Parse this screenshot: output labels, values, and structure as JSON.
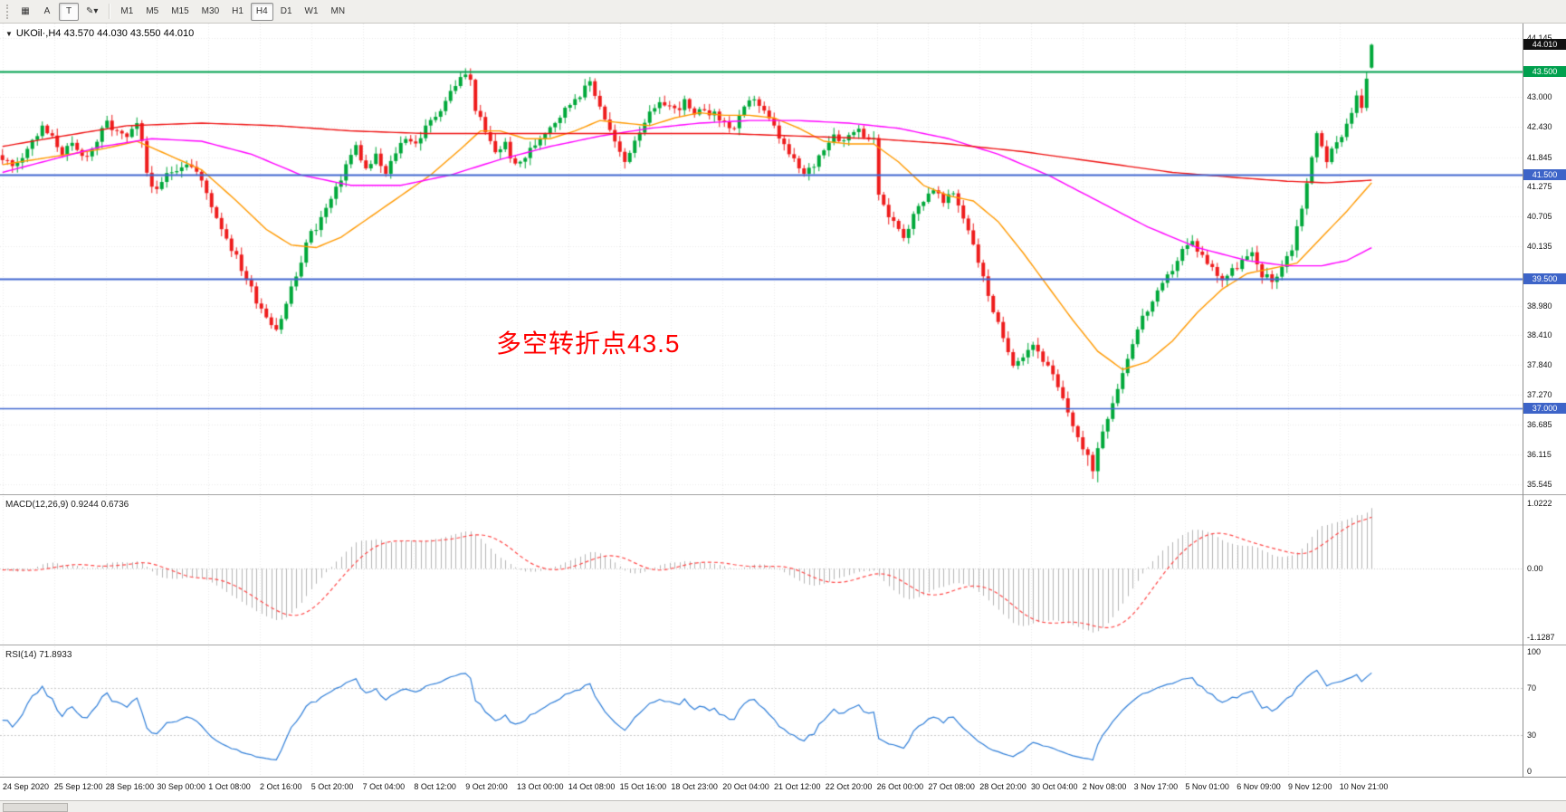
{
  "toolbar": {
    "left_buttons": [
      {
        "name": "chart-grid-icon",
        "label": "▦",
        "pressed": false
      },
      {
        "name": "font-a-button",
        "label": "A",
        "pressed": false
      },
      {
        "name": "text-tool-button",
        "label": "T",
        "pressed": true
      },
      {
        "name": "drawing-tool-dropdown",
        "label": "✎▾",
        "pressed": false
      }
    ],
    "timeframes": [
      "M1",
      "M5",
      "M15",
      "M30",
      "H1",
      "H4",
      "D1",
      "W1",
      "MN"
    ],
    "active_timeframe": "H4"
  },
  "chart": {
    "title": "UKOil·,H4 43.570 44.030 43.550 44.010",
    "annotation": {
      "text": "多空转折点43.5",
      "color": "#ff0000"
    },
    "price_axis_labels": [
      "44.145",
      "43.000",
      "42.430",
      "41.845",
      "41.275",
      "40.705",
      "40.135",
      "38.980",
      "38.410",
      "37.840",
      "37.270",
      "36.685",
      "36.115",
      "35.545"
    ],
    "badges": [
      {
        "text": "44.010",
        "bg": "#111111",
        "price": 44.01
      },
      {
        "text": "43.500",
        "bg": "#00a04e",
        "price": 43.5
      },
      {
        "text": "41.500",
        "bg": "#3d64c8",
        "price": 41.5
      },
      {
        "text": "39.500",
        "bg": "#3d64c8",
        "price": 39.5
      },
      {
        "text": "37.000",
        "bg": "#3d64c8",
        "price": 37.0
      }
    ],
    "hlines": [
      {
        "price": 43.5,
        "color": "#00a04e",
        "width": 2
      },
      {
        "price": 41.5,
        "color": "#4167d0",
        "width": 2
      },
      {
        "price": 39.5,
        "color": "#4167d0",
        "width": 2
      },
      {
        "price": 37.0,
        "color": "#4167d0",
        "width": 1.5
      }
    ]
  },
  "macd": {
    "label": "MACD(12,26,9) 0.9244 0.6736",
    "axis_max": "1.0222",
    "axis_zero": "0.00",
    "axis_min": "-1.1287"
  },
  "rsi": {
    "label": "RSI(14) 71.8933",
    "axis": [
      {
        "v": 100,
        "label": "100"
      },
      {
        "v": 70,
        "label": "70"
      },
      {
        "v": 30,
        "label": "30"
      },
      {
        "v": 0,
        "label": "0"
      }
    ]
  },
  "time_axis": [
    "24 Sep 2020",
    "25 Sep 12:00",
    "28 Sep 16:00",
    "30 Sep 00:00",
    "1 Oct 08:00",
    "2 Oct 16:00",
    "5 Oct 20:00",
    "7 Oct 04:00",
    "8 Oct 12:00",
    "9 Oct 20:00",
    "13 Oct 00:00",
    "14 Oct 08:00",
    "15 Oct 16:00",
    "18 Oct 23:00",
    "20 Oct 04:00",
    "21 Oct 12:00",
    "22 Oct 20:00",
    "26 Oct 00:00",
    "27 Oct 08:00",
    "28 Oct 20:00",
    "30 Oct 04:00",
    "2 Nov 08:00",
    "3 Nov 17:00",
    "5 Nov 01:00",
    "6 Nov 09:00",
    "9 Nov 12:00",
    "10 Nov 21:00"
  ],
  "chart_data": {
    "type": "candlestick",
    "symbol": "UKOil",
    "timeframe": "H4",
    "last_candle": {
      "open": 43.57,
      "high": 44.03,
      "low": 43.55,
      "close": 44.01
    },
    "bars": 276,
    "prehistory_bars": 100,
    "price_min": 35.45,
    "price_max": 44.35,
    "up_color": "#00a83a",
    "down_color": "#ee1c1c",
    "waypoints": [
      [
        -100,
        42.3
      ],
      [
        -88,
        41.7
      ],
      [
        -76,
        42.2
      ],
      [
        -64,
        41.8
      ],
      [
        -52,
        42.3
      ],
      [
        -40,
        41.9
      ],
      [
        -28,
        42.2
      ],
      [
        -16,
        41.7
      ],
      [
        -8,
        42.0
      ],
      [
        -1,
        41.9
      ],
      [
        0,
        41.85
      ],
      [
        2,
        41.65
      ],
      [
        4,
        41.9
      ],
      [
        6,
        42.15
      ],
      [
        8,
        42.4
      ],
      [
        10,
        42.2
      ],
      [
        12,
        41.95
      ],
      [
        14,
        42.05
      ],
      [
        16,
        41.85
      ],
      [
        18,
        42.0
      ],
      [
        21,
        42.5
      ],
      [
        23,
        42.3
      ],
      [
        25,
        42.2
      ],
      [
        27,
        42.45
      ],
      [
        28,
        42.1
      ],
      [
        29,
        41.55
      ],
      [
        31,
        41.15
      ],
      [
        33,
        41.5
      ],
      [
        35,
        41.65
      ],
      [
        37,
        41.75
      ],
      [
        39,
        41.55
      ],
      [
        41,
        41.15
      ],
      [
        43,
        40.7
      ],
      [
        45,
        40.3
      ],
      [
        47,
        39.9
      ],
      [
        49,
        39.5
      ],
      [
        51,
        39.1
      ],
      [
        53,
        38.8
      ],
      [
        55,
        38.55
      ],
      [
        56,
        38.75
      ],
      [
        57,
        39.0
      ],
      [
        58,
        39.35
      ],
      [
        60,
        39.75
      ],
      [
        61,
        40.25
      ],
      [
        63,
        40.5
      ],
      [
        65,
        40.85
      ],
      [
        67,
        41.2
      ],
      [
        69,
        41.7
      ],
      [
        71,
        42.05
      ],
      [
        73,
        41.6
      ],
      [
        75,
        41.85
      ],
      [
        77,
        41.5
      ],
      [
        79,
        41.95
      ],
      [
        81,
        42.25
      ],
      [
        83,
        42.1
      ],
      [
        85,
        42.4
      ],
      [
        87,
        42.65
      ],
      [
        89,
        42.95
      ],
      [
        91,
        43.25
      ],
      [
        93,
        43.45
      ],
      [
        94,
        43.3
      ],
      [
        95,
        42.8
      ],
      [
        97,
        42.3
      ],
      [
        99,
        41.95
      ],
      [
        101,
        42.1
      ],
      [
        103,
        41.65
      ],
      [
        105,
        41.85
      ],
      [
        107,
        42.1
      ],
      [
        109,
        42.35
      ],
      [
        111,
        42.55
      ],
      [
        113,
        42.75
      ],
      [
        115,
        43.0
      ],
      [
        117,
        43.15
      ],
      [
        118,
        43.3
      ],
      [
        120,
        42.85
      ],
      [
        122,
        42.35
      ],
      [
        124,
        41.9
      ],
      [
        125,
        41.75
      ],
      [
        127,
        42.2
      ],
      [
        129,
        42.55
      ],
      [
        131,
        42.75
      ],
      [
        133,
        42.9
      ],
      [
        135,
        42.75
      ],
      [
        137,
        42.9
      ],
      [
        139,
        42.6
      ],
      [
        141,
        42.8
      ],
      [
        143,
        42.65
      ],
      [
        145,
        42.5
      ],
      [
        147,
        42.4
      ],
      [
        149,
        42.75
      ],
      [
        151,
        43.0
      ],
      [
        153,
        42.7
      ],
      [
        155,
        42.4
      ],
      [
        157,
        42.05
      ],
      [
        159,
        41.75
      ],
      [
        161,
        41.5
      ],
      [
        163,
        41.7
      ],
      [
        165,
        42.05
      ],
      [
        167,
        42.3
      ],
      [
        169,
        42.15
      ],
      [
        171,
        42.4
      ],
      [
        173,
        42.3
      ],
      [
        175,
        42.15
      ],
      [
        176,
        41.15
      ],
      [
        177,
        40.85
      ],
      [
        179,
        40.6
      ],
      [
        181,
        40.35
      ],
      [
        183,
        40.7
      ],
      [
        185,
        41.05
      ],
      [
        187,
        41.25
      ],
      [
        189,
        40.95
      ],
      [
        191,
        41.15
      ],
      [
        193,
        40.7
      ],
      [
        195,
        40.2
      ],
      [
        197,
        39.5
      ],
      [
        199,
        38.9
      ],
      [
        201,
        38.3
      ],
      [
        203,
        37.9
      ],
      [
        205,
        38.05
      ],
      [
        207,
        38.25
      ],
      [
        209,
        37.95
      ],
      [
        211,
        37.6
      ],
      [
        213,
        37.15
      ],
      [
        215,
        36.7
      ],
      [
        217,
        36.2
      ],
      [
        219,
        35.85
      ],
      [
        220,
        36.25
      ],
      [
        221,
        36.6
      ],
      [
        223,
        37.15
      ],
      [
        225,
        37.7
      ],
      [
        227,
        38.3
      ],
      [
        229,
        38.75
      ],
      [
        231,
        39.05
      ],
      [
        233,
        39.35
      ],
      [
        235,
        39.7
      ],
      [
        237,
        40.05
      ],
      [
        239,
        40.2
      ],
      [
        241,
        39.95
      ],
      [
        243,
        39.7
      ],
      [
        245,
        39.5
      ],
      [
        247,
        39.65
      ],
      [
        249,
        39.85
      ],
      [
        251,
        39.95
      ],
      [
        253,
        39.6
      ],
      [
        255,
        39.45
      ],
      [
        257,
        39.75
      ],
      [
        259,
        40.1
      ],
      [
        261,
        40.9
      ],
      [
        263,
        41.8
      ],
      [
        264,
        42.3
      ],
      [
        265,
        42.1
      ],
      [
        266,
        41.8
      ],
      [
        268,
        42.1
      ],
      [
        270,
        42.5
      ],
      [
        271,
        42.75
      ],
      [
        272,
        43.0
      ],
      [
        273,
        42.8
      ],
      [
        274,
        43.3
      ],
      [
        275,
        44.01
      ]
    ],
    "ma_lines": [
      {
        "name": "ma-fast",
        "color": "#ff9900",
        "points": [
          [
            0,
            41.7
          ],
          [
            10,
            41.85
          ],
          [
            20,
            42.0
          ],
          [
            27,
            42.15
          ],
          [
            33,
            41.9
          ],
          [
            40,
            41.6
          ],
          [
            47,
            41.0
          ],
          [
            53,
            40.45
          ],
          [
            58,
            40.15
          ],
          [
            63,
            40.1
          ],
          [
            68,
            40.3
          ],
          [
            74,
            40.7
          ],
          [
            80,
            41.1
          ],
          [
            86,
            41.5
          ],
          [
            92,
            42.0
          ],
          [
            96,
            42.35
          ],
          [
            100,
            42.35
          ],
          [
            105,
            42.2
          ],
          [
            110,
            42.2
          ],
          [
            115,
            42.35
          ],
          [
            120,
            42.55
          ],
          [
            125,
            42.5
          ],
          [
            130,
            42.45
          ],
          [
            135,
            42.6
          ],
          [
            140,
            42.7
          ],
          [
            145,
            42.65
          ],
          [
            150,
            42.65
          ],
          [
            155,
            42.6
          ],
          [
            160,
            42.4
          ],
          [
            165,
            42.15
          ],
          [
            170,
            42.1
          ],
          [
            175,
            42.1
          ],
          [
            180,
            41.75
          ],
          [
            185,
            41.3
          ],
          [
            190,
            41.1
          ],
          [
            195,
            41.0
          ],
          [
            200,
            40.6
          ],
          [
            205,
            40.0
          ],
          [
            210,
            39.35
          ],
          [
            215,
            38.7
          ],
          [
            220,
            38.1
          ],
          [
            225,
            37.75
          ],
          [
            230,
            37.9
          ],
          [
            235,
            38.3
          ],
          [
            240,
            38.85
          ],
          [
            245,
            39.3
          ],
          [
            250,
            39.6
          ],
          [
            255,
            39.7
          ],
          [
            260,
            39.8
          ],
          [
            265,
            40.3
          ],
          [
            270,
            40.8
          ],
          [
            275,
            41.35
          ]
        ]
      },
      {
        "name": "ma-mid",
        "color": "#ff00ff",
        "points": [
          [
            0,
            41.55
          ],
          [
            10,
            41.8
          ],
          [
            20,
            42.05
          ],
          [
            30,
            42.2
          ],
          [
            40,
            42.15
          ],
          [
            50,
            41.9
          ],
          [
            60,
            41.5
          ],
          [
            70,
            41.3
          ],
          [
            80,
            41.3
          ],
          [
            90,
            41.5
          ],
          [
            100,
            41.8
          ],
          [
            110,
            42.05
          ],
          [
            120,
            42.25
          ],
          [
            130,
            42.4
          ],
          [
            140,
            42.5
          ],
          [
            150,
            42.55
          ],
          [
            160,
            42.55
          ],
          [
            170,
            42.5
          ],
          [
            180,
            42.4
          ],
          [
            190,
            42.2
          ],
          [
            200,
            41.9
          ],
          [
            210,
            41.5
          ],
          [
            220,
            41.0
          ],
          [
            230,
            40.5
          ],
          [
            240,
            40.1
          ],
          [
            250,
            39.85
          ],
          [
            258,
            39.75
          ],
          [
            265,
            39.75
          ],
          [
            270,
            39.85
          ],
          [
            275,
            40.1
          ]
        ]
      },
      {
        "name": "ma-slow",
        "color": "#ee1111",
        "points": [
          [
            0,
            42.05
          ],
          [
            12,
            42.25
          ],
          [
            25,
            42.45
          ],
          [
            40,
            42.5
          ],
          [
            55,
            42.45
          ],
          [
            70,
            42.35
          ],
          [
            85,
            42.3
          ],
          [
            100,
            42.3
          ],
          [
            115,
            42.3
          ],
          [
            130,
            42.3
          ],
          [
            145,
            42.3
          ],
          [
            160,
            42.25
          ],
          [
            175,
            42.2
          ],
          [
            190,
            42.1
          ],
          [
            205,
            41.95
          ],
          [
            220,
            41.75
          ],
          [
            235,
            41.55
          ],
          [
            248,
            41.45
          ],
          [
            258,
            41.38
          ],
          [
            266,
            41.35
          ],
          [
            275,
            41.4
          ]
        ]
      }
    ],
    "macd": {
      "fast": 12,
      "slow": 26,
      "signal": 9,
      "hist_color": "#b4b4b4",
      "signal_color": "#ff4a4a"
    },
    "rsi": {
      "period": 14,
      "color": "#2f7ed8",
      "levels": [
        30,
        70
      ]
    }
  }
}
